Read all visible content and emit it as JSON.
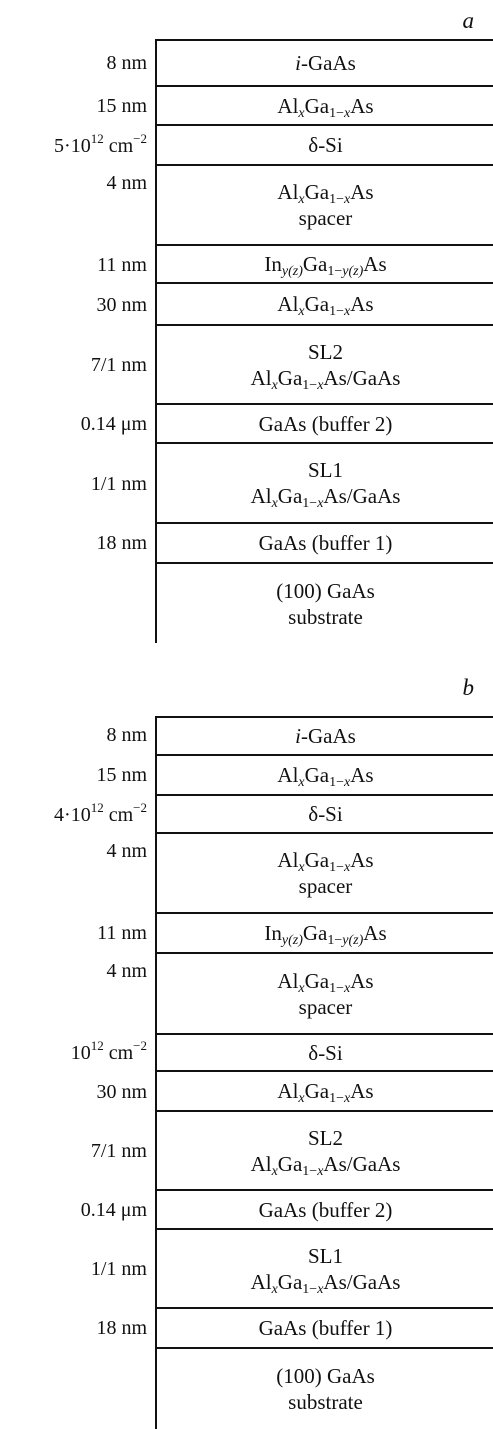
{
  "panels": [
    {
      "label": "a",
      "layers": [
        {
          "thickness": "8 nm",
          "name": "i-GaAs"
        },
        {
          "thickness": "15 nm",
          "name": "AlxGa1−xAs"
        },
        {
          "thickness": "5·1012 cm−2",
          "name": "δ-Si"
        },
        {
          "thickness": "4 nm",
          "name": "AlxGa1−xAs spacer"
        },
        {
          "thickness": "11 nm",
          "name": "Iny(z)Ga1−y(z)As"
        },
        {
          "thickness": "30 nm",
          "name": "AlxGa1−xAs"
        },
        {
          "thickness": "7/1 nm",
          "name": "SL2 AlxGa1−xAs/GaAs"
        },
        {
          "thickness": "0.14 μm",
          "name": "GaAs (buffer 2)"
        },
        {
          "thickness": "1/1 nm",
          "name": "SL1 AlxGa1−xAs/GaAs"
        },
        {
          "thickness": "18 nm",
          "name": "GaAs (buffer 1)"
        },
        {
          "thickness": "",
          "name": "(100) GaAs substrate"
        }
      ]
    },
    {
      "label": "b",
      "layers": [
        {
          "thickness": "8 nm",
          "name": "i-GaAs"
        },
        {
          "thickness": "15 nm",
          "name": "AlxGa1−xAs"
        },
        {
          "thickness": "4·1012 cm−2",
          "name": "δ-Si"
        },
        {
          "thickness": "4 nm",
          "name": "AlxGa1−xAs spacer"
        },
        {
          "thickness": "11 nm",
          "name": "Iny(z)Ga1−y(z)As"
        },
        {
          "thickness": "4 nm",
          "name": "AlxGa1−xAs spacer"
        },
        {
          "thickness": "1012 cm−2",
          "name": "δ-Si"
        },
        {
          "thickness": "30 nm",
          "name": "AlxGa1−xAs"
        },
        {
          "thickness": "7/1 nm",
          "name": "SL2 AlxGa1−xAs/GaAs"
        },
        {
          "thickness": "0.14 μm",
          "name": "GaAs (buffer 2)"
        },
        {
          "thickness": "1/1 nm",
          "name": "SL1 AlxGa1−xAs/GaAs"
        },
        {
          "thickness": "18 nm",
          "name": "GaAs (buffer 1)"
        },
        {
          "thickness": "",
          "name": "(100) GaAs substrate"
        }
      ]
    }
  ]
}
